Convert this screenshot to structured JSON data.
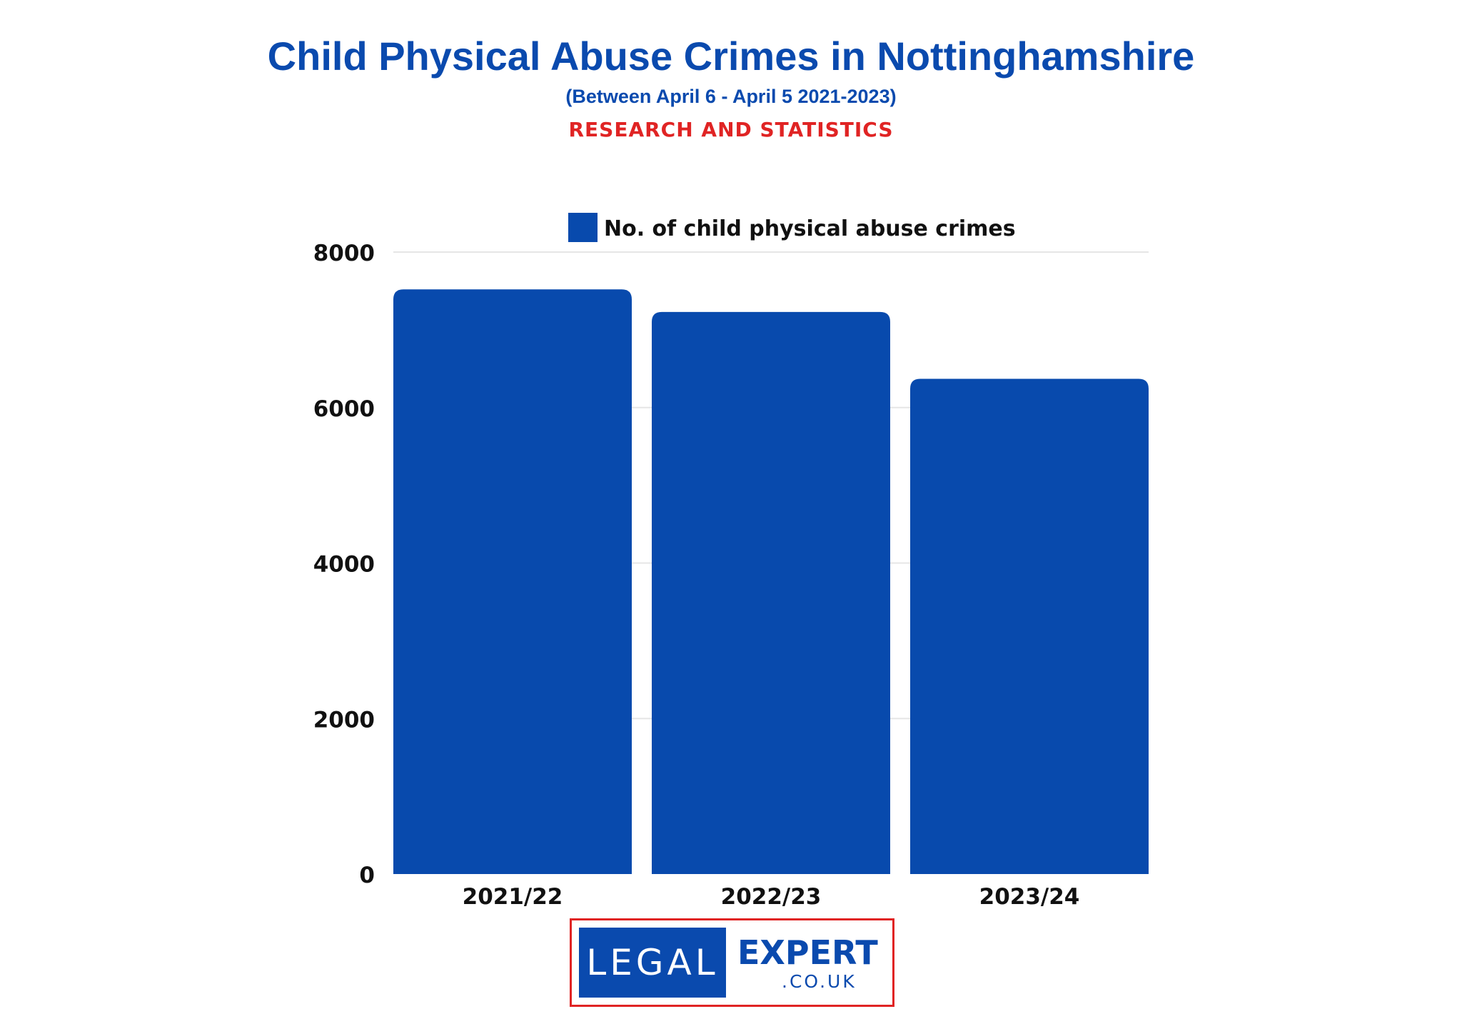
{
  "header": {
    "title": "Child Physical Abuse Crimes in Nottinghamshire",
    "subtitle": "(Between April 6 - April 5 2021-2023)",
    "tagline": "RESEARCH AND STATISTICS"
  },
  "colors": {
    "title": "#0a4aae",
    "tagline": "#e02424",
    "bar": "#084aad",
    "grid": "#e6e6e6",
    "text": "#111111"
  },
  "chart_data": {
    "type": "bar",
    "categories": [
      "2021/22",
      "2022/23",
      "2023/24"
    ],
    "series": [
      {
        "name": "No. of child physical abuse crimes",
        "values": [
          7520,
          7230,
          6370
        ]
      }
    ],
    "ylim": [
      0,
      8000
    ],
    "yticks": [
      0,
      2000,
      4000,
      6000,
      8000
    ],
    "grid": true,
    "legend": "top-center"
  },
  "logo": {
    "left_text": "LEGAL",
    "right_text": "EXPERT",
    "domain_text": ".CO.UK"
  }
}
